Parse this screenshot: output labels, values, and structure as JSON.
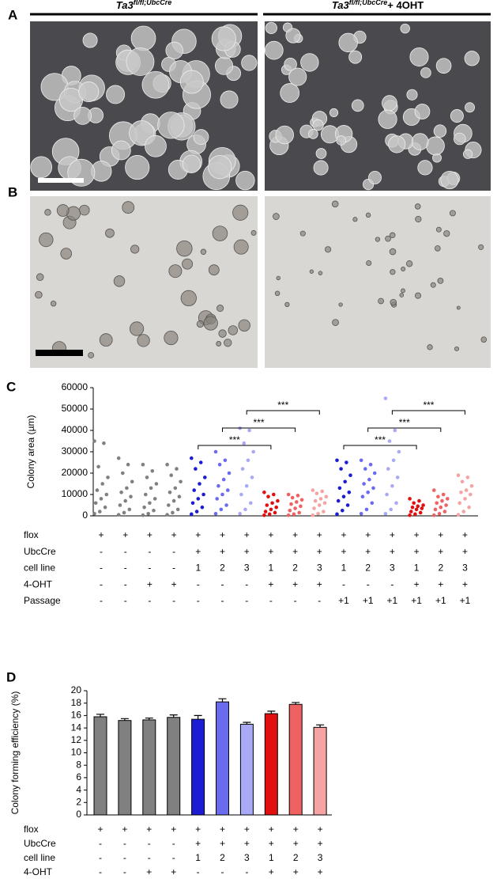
{
  "panels": {
    "a": "A",
    "b": "B",
    "c": "C",
    "d": "D"
  },
  "header_left": {
    "main": "Ta3",
    "sup": "fl/fl;UbcCre"
  },
  "header_right": {
    "main": "Ta3",
    "sup": "fl/fl;UbcCre",
    "suffix": "+ 4OHT"
  },
  "chart_data": [
    {
      "type": "strip",
      "ylabel": "Colony area (µm)",
      "ylim": [
        0,
        60000
      ],
      "yticks": [
        0,
        10000,
        20000,
        30000,
        40000,
        50000,
        60000
      ],
      "groups": [
        {
          "color": "#808080",
          "values": [
            35000,
            34000,
            23000,
            18000,
            15000,
            12000,
            10000,
            8000,
            6000,
            4000,
            2000,
            1000
          ]
        },
        {
          "color": "#808080",
          "values": [
            27000,
            24000,
            20000,
            16000,
            13000,
            11000,
            9000,
            7000,
            5000,
            3000,
            1500,
            500
          ]
        },
        {
          "color": "#808080",
          "values": [
            24000,
            21000,
            18000,
            15000,
            13000,
            10000,
            8000,
            6000,
            4000,
            2500,
            1000,
            300
          ]
        },
        {
          "color": "#808080",
          "values": [
            24000,
            22000,
            19000,
            16000,
            13000,
            11000,
            9000,
            7000,
            5000,
            3000,
            1500,
            500
          ]
        },
        {
          "color": "#1c1cd4",
          "values": [
            27000,
            25000,
            22000,
            18000,
            15000,
            12000,
            10000,
            8000,
            6000,
            4000,
            2000,
            800
          ]
        },
        {
          "color": "#6b6bf0",
          "values": [
            30000,
            26000,
            24000,
            20000,
            17000,
            14000,
            12000,
            10000,
            8000,
            5000,
            3000,
            1000
          ]
        },
        {
          "color": "#a9a9f5",
          "values": [
            41000,
            40000,
            34000,
            30000,
            26000,
            22000,
            18000,
            14000,
            10000,
            6000,
            3000,
            1000
          ]
        },
        {
          "color": "#e01010",
          "values": [
            11000,
            10000,
            9000,
            7000,
            6000,
            5000,
            4000,
            3000,
            2000,
            1500,
            800,
            300
          ]
        },
        {
          "color": "#f06262",
          "values": [
            10000,
            9500,
            8500,
            7500,
            6500,
            5500,
            4500,
            3500,
            2500,
            1500,
            800,
            300
          ]
        },
        {
          "color": "#f5a3a3",
          "values": [
            12000,
            11500,
            10500,
            9000,
            8000,
            7000,
            6000,
            5000,
            3500,
            2000,
            1000,
            300
          ]
        },
        {
          "color": "#1c1cd4",
          "values": [
            26000,
            25000,
            22000,
            19000,
            16000,
            13000,
            11000,
            9000,
            7000,
            5000,
            2500,
            800
          ]
        },
        {
          "color": "#6b6bf0",
          "values": [
            26000,
            24000,
            22000,
            20000,
            17000,
            15000,
            13000,
            11000,
            9000,
            6000,
            3000,
            1000
          ]
        },
        {
          "color": "#a9a9f5",
          "values": [
            55000,
            40000,
            35000,
            30000,
            26000,
            22000,
            18000,
            14000,
            10000,
            6000,
            3000,
            1000
          ]
        },
        {
          "color": "#e01010",
          "values": [
            8000,
            7000,
            6000,
            5000,
            4500,
            4000,
            3500,
            3000,
            2000,
            1500,
            800,
            300
          ]
        },
        {
          "color": "#f06262",
          "values": [
            12000,
            10000,
            9000,
            8000,
            7000,
            6000,
            5000,
            4000,
            3000,
            2000,
            1000,
            300
          ]
        },
        {
          "color": "#f5a3a3",
          "values": [
            19000,
            18000,
            16000,
            14000,
            12000,
            11000,
            10000,
            8000,
            6000,
            4000,
            2000,
            500
          ]
        }
      ],
      "brackets": [
        {
          "from": 4,
          "to": 7,
          "label": "***"
        },
        {
          "from": 5,
          "to": 8,
          "label": "***"
        },
        {
          "from": 6,
          "to": 9,
          "label": "***"
        },
        {
          "from": 10,
          "to": 13,
          "label": "***"
        },
        {
          "from": 11,
          "to": 14,
          "label": "***"
        },
        {
          "from": 12,
          "to": 15,
          "label": "***"
        }
      ],
      "conditions": [
        {
          "label": "flox",
          "values": [
            "+",
            "+",
            "+",
            "+",
            "+",
            "+",
            "+",
            "+",
            "+",
            "+",
            "+",
            "+",
            "+",
            "+",
            "+",
            "+"
          ]
        },
        {
          "label": "UbcCre",
          "values": [
            "-",
            "-",
            "-",
            "-",
            "+",
            "+",
            "+",
            "+",
            "+",
            "+",
            "+",
            "+",
            "+",
            "+",
            "+",
            "+"
          ]
        },
        {
          "label": "cell line",
          "values": [
            "-",
            "-",
            "-",
            "-",
            "1",
            "2",
            "3",
            "1",
            "2",
            "3",
            "1",
            "2",
            "3",
            "1",
            "2",
            "3"
          ]
        },
        {
          "label": "4-OHT",
          "values": [
            "-",
            "-",
            "+",
            "+",
            "-",
            "-",
            "-",
            "+",
            "+",
            "+",
            "-",
            "-",
            "-",
            "+",
            "+",
            "+"
          ]
        },
        {
          "label": "Passage",
          "values": [
            "-",
            "-",
            "-",
            "-",
            "-",
            "-",
            "-",
            "-",
            "-",
            "-",
            "+1",
            "+1",
            "+1",
            "+1",
            "+1",
            "+1"
          ]
        }
      ]
    },
    {
      "type": "bar",
      "ylabel": "Colony forming efficiency (%)",
      "ylim": [
        0,
        20
      ],
      "yticks": [
        0,
        2,
        4,
        6,
        8,
        10,
        12,
        14,
        16,
        18,
        20
      ],
      "values": [
        15.8,
        15.2,
        15.3,
        15.7,
        15.4,
        18.2,
        14.6,
        16.3,
        17.8,
        14.1
      ],
      "errors": [
        0.4,
        0.3,
        0.3,
        0.4,
        0.6,
        0.5,
        0.3,
        0.4,
        0.3,
        0.4
      ],
      "colors": [
        "#808080",
        "#808080",
        "#808080",
        "#808080",
        "#1c1cd4",
        "#6b6bf0",
        "#a9a9f5",
        "#e01010",
        "#f06262",
        "#f5a3a3"
      ],
      "conditions": [
        {
          "label": "flox",
          "values": [
            "+",
            "+",
            "+",
            "+",
            "+",
            "+",
            "+",
            "+",
            "+",
            "+"
          ]
        },
        {
          "label": "UbcCre",
          "values": [
            "-",
            "-",
            "-",
            "-",
            "+",
            "+",
            "+",
            "+",
            "+",
            "+"
          ]
        },
        {
          "label": "cell line",
          "values": [
            "-",
            "-",
            "-",
            "-",
            "1",
            "2",
            "3",
            "1",
            "2",
            "3"
          ]
        },
        {
          "label": "4-OHT",
          "values": [
            "-",
            "-",
            "+",
            "+",
            "-",
            "-",
            "-",
            "+",
            "+",
            "+"
          ]
        }
      ]
    }
  ]
}
